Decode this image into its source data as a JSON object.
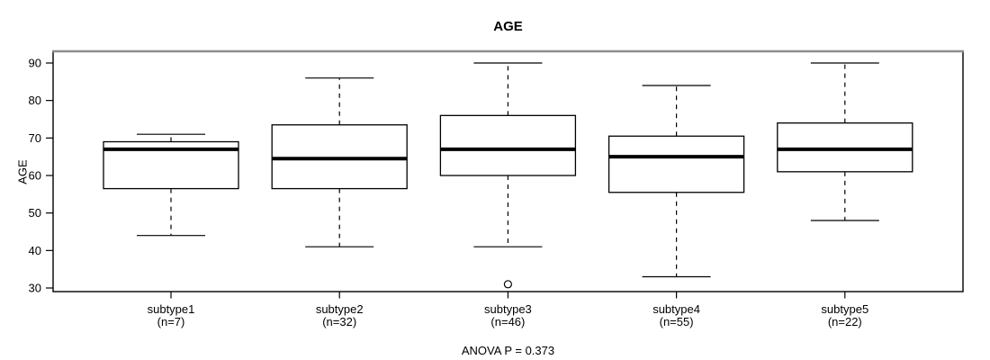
{
  "chart_data": {
    "type": "boxplot",
    "title": "AGE",
    "xlabel": "",
    "ylabel": "AGE",
    "footer": "ANOVA P = 0.373",
    "ylim": [
      29,
      93
    ],
    "yticks": [
      30,
      40,
      50,
      60,
      70,
      80,
      90
    ],
    "grid": false,
    "legend": null,
    "groups": [
      {
        "label": "subtype1",
        "n_label": "(n=7)",
        "n": 7,
        "whisker_low": 44,
        "q1": 56.5,
        "median": 67,
        "q3": 69,
        "whisker_high": 71,
        "outliers": []
      },
      {
        "label": "subtype2",
        "n_label": "(n=32)",
        "n": 32,
        "whisker_low": 41,
        "q1": 56.5,
        "median": 64.5,
        "q3": 73.5,
        "whisker_high": 86,
        "outliers": []
      },
      {
        "label": "subtype3",
        "n_label": "(n=46)",
        "n": 46,
        "whisker_low": 41,
        "q1": 60,
        "median": 67,
        "q3": 76,
        "whisker_high": 90,
        "outliers": [
          31
        ]
      },
      {
        "label": "subtype4",
        "n_label": "(n=55)",
        "n": 55,
        "whisker_low": 33,
        "q1": 55.5,
        "median": 65,
        "q3": 70.5,
        "whisker_high": 84,
        "outliers": []
      },
      {
        "label": "subtype5",
        "n_label": "(n=22)",
        "n": 22,
        "whisker_low": 48,
        "q1": 61,
        "median": 67,
        "q3": 74,
        "whisker_high": 90,
        "outliers": []
      }
    ],
    "colors": {
      "line": "#000000",
      "box_fill": "#ffffff",
      "border_top": "#8c8c8c",
      "background": "#ffffff"
    }
  }
}
